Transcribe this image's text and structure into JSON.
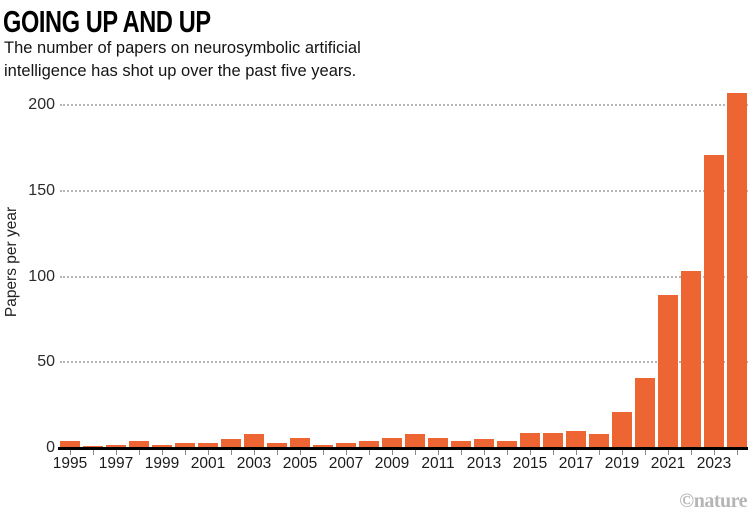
{
  "header": {
    "title": "GOING UP AND UP",
    "subtitle_line1": "The number of papers on neurosymbolic artificial",
    "subtitle_line2": "intelligence has shot up over the past five years."
  },
  "chart_data": {
    "type": "bar",
    "title": "GOING UP AND UP",
    "subtitle": "The number of papers on neurosymbolic artificial intelligence has shot up over the past five years.",
    "xlabel": "",
    "ylabel": "Papers per year",
    "ylim": [
      0,
      215
    ],
    "yticks": [
      0,
      50,
      100,
      150,
      200
    ],
    "grid": "horizontal dotted gridlines at 50/100/150/200, solid black baseline at 0",
    "legend": "none",
    "bar_color": "#ED6532",
    "categories": [
      1995,
      1996,
      1997,
      1998,
      1999,
      2000,
      2001,
      2002,
      2003,
      2004,
      2005,
      2006,
      2007,
      2008,
      2009,
      2010,
      2011,
      2012,
      2013,
      2014,
      2015,
      2016,
      2017,
      2018,
      2019,
      2020,
      2021,
      2022,
      2023,
      2024
    ],
    "values": [
      4,
      1,
      2,
      4,
      2,
      3,
      3,
      5,
      8,
      3,
      6,
      2,
      3,
      4,
      6,
      8,
      6,
      4,
      5,
      4,
      9,
      9,
      10,
      8,
      21,
      41,
      89,
      103,
      171,
      207
    ],
    "xtick_labels": [
      "1995",
      "1997",
      "1999",
      "2001",
      "2003",
      "2005",
      "2007",
      "2009",
      "2011",
      "2013",
      "2015",
      "2017",
      "2019",
      "2021",
      "2023"
    ]
  },
  "credit": {
    "label": "©nature"
  }
}
